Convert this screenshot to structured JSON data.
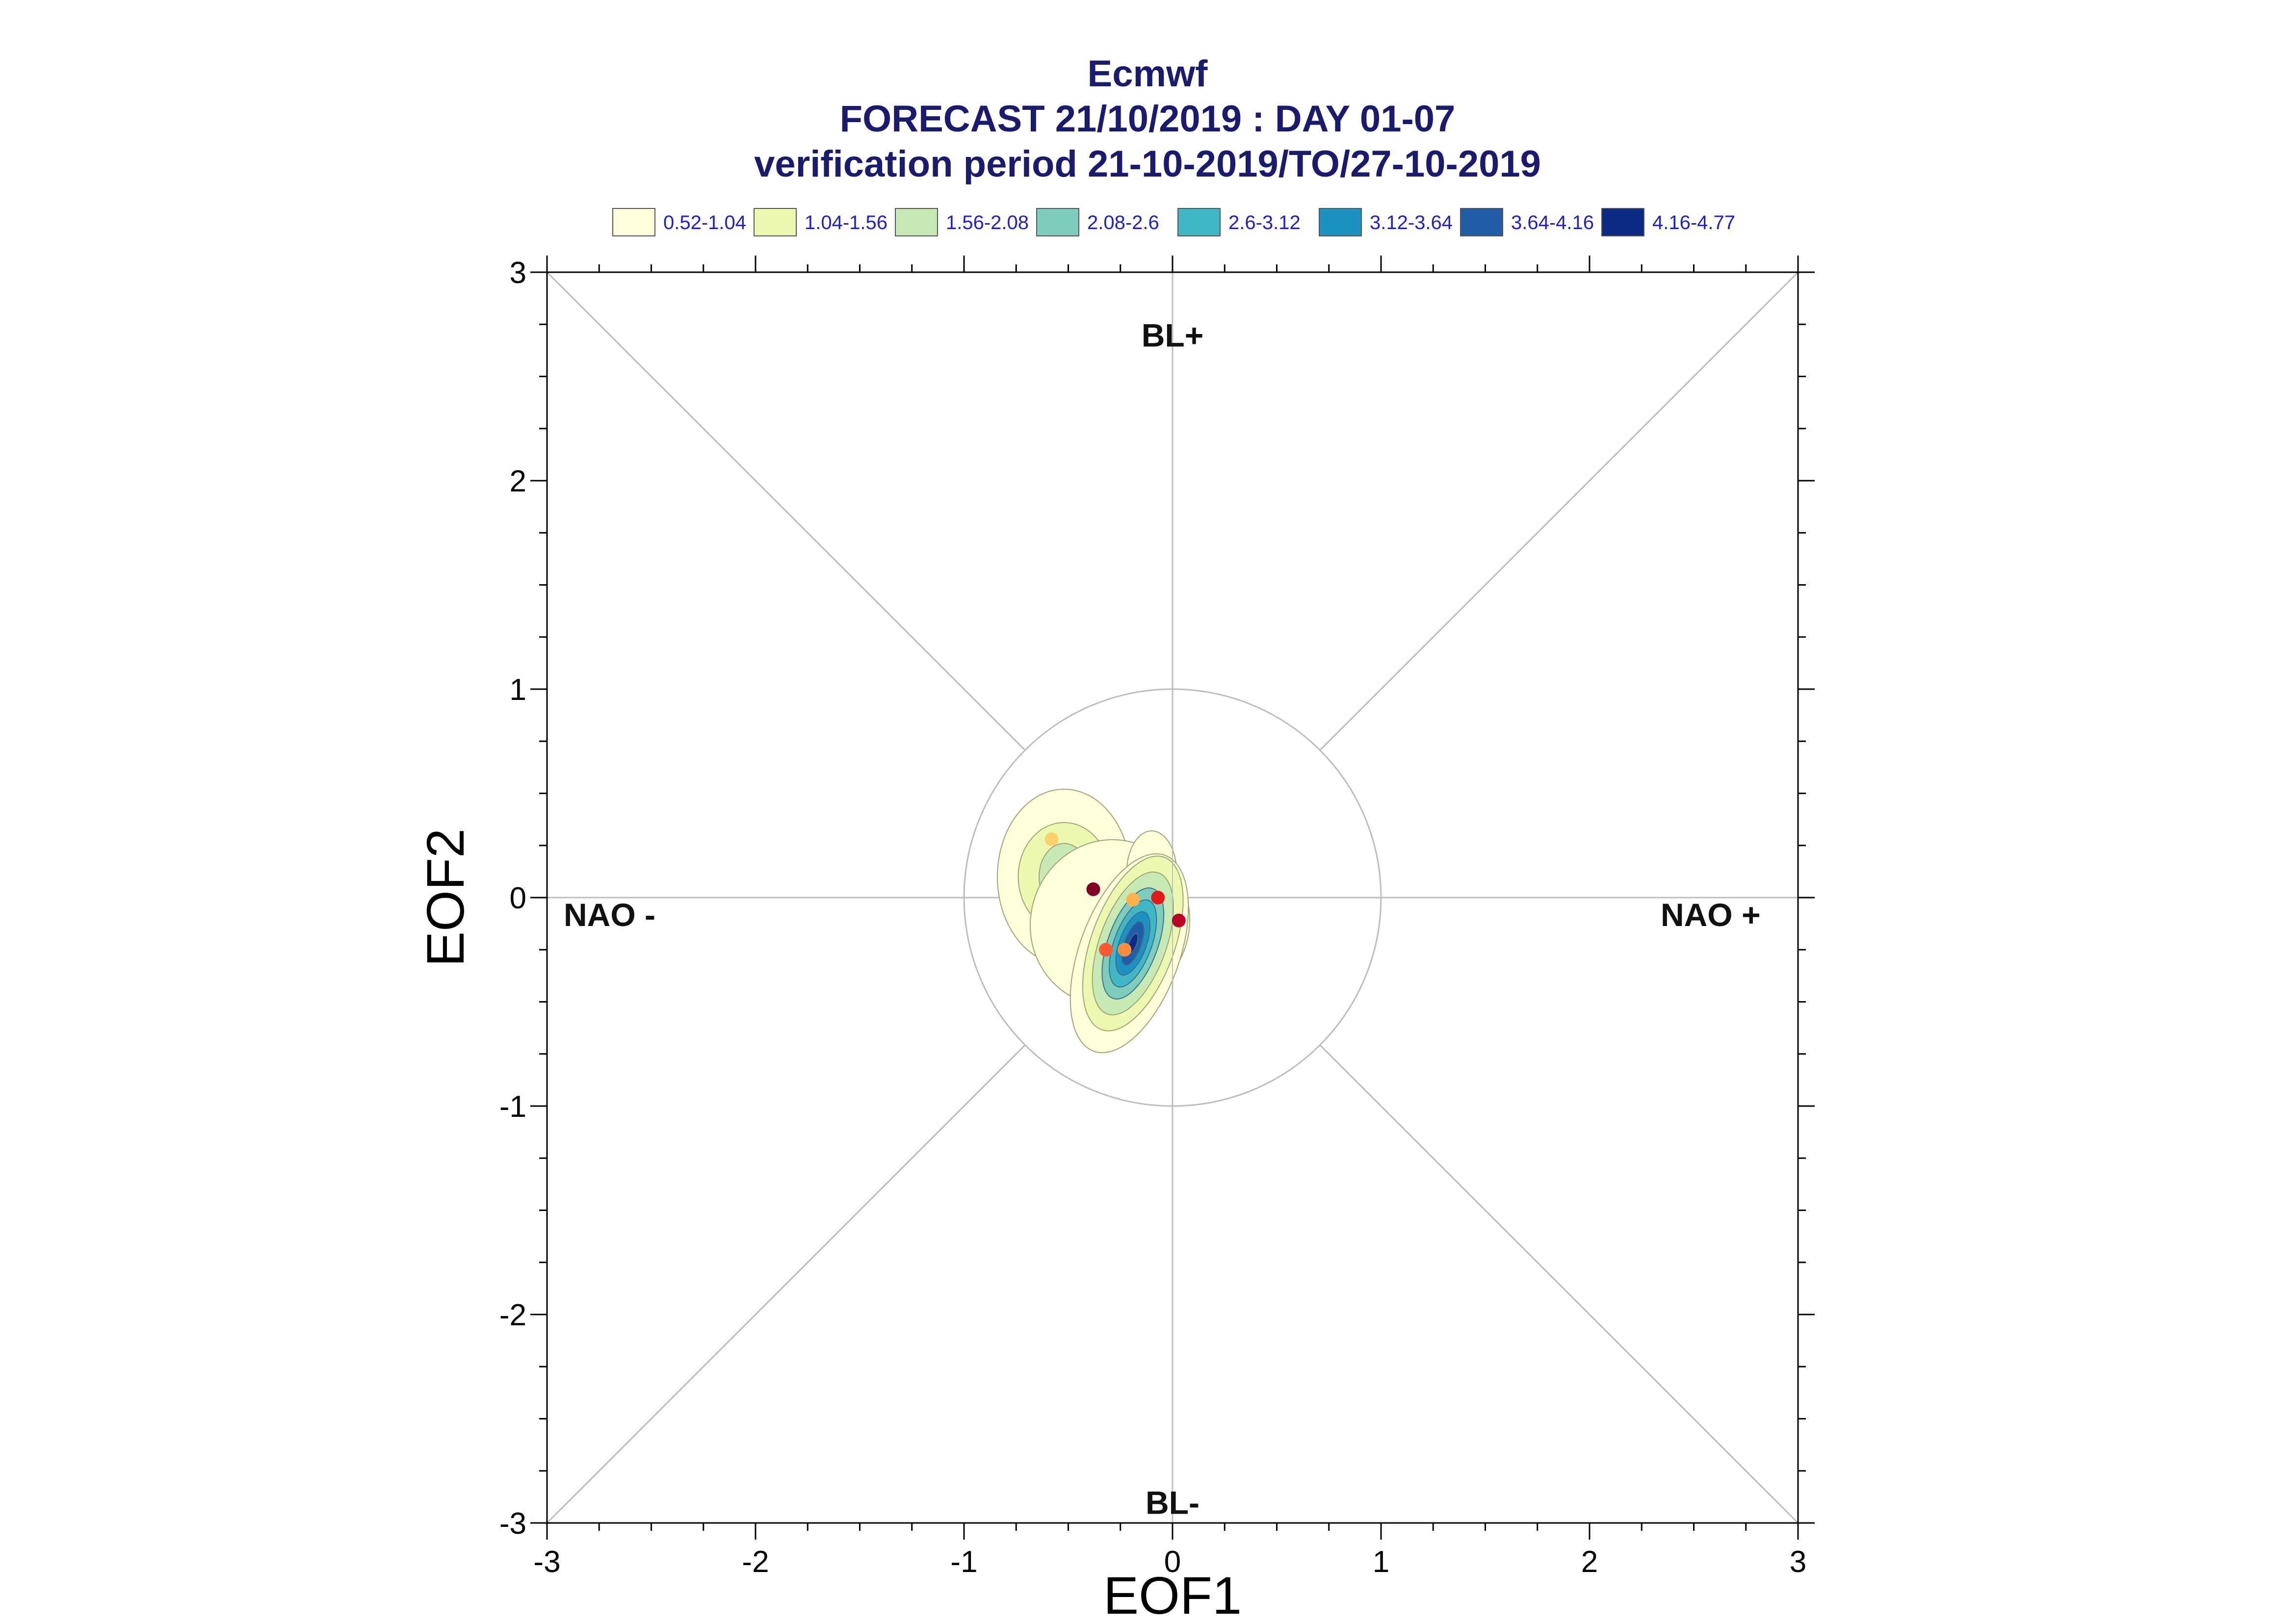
{
  "titles": {
    "line1": "Ecmwf",
    "line2": "FORECAST 21/10/2019 : DAY 01-07",
    "line3": "verification period 21-10-2019/TO/27-10-2019"
  },
  "legend": [
    {
      "label": "0.52-1.04",
      "color": "#ffffd9"
    },
    {
      "label": "1.04-1.56",
      "color": "#edf8b1"
    },
    {
      "label": "1.56-2.08",
      "color": "#c7e9b4"
    },
    {
      "label": "2.08-2.6",
      "color": "#7fcdbb"
    },
    {
      "label": "2.6-3.12",
      "color": "#41b6c4"
    },
    {
      "label": "3.12-3.64",
      "color": "#1d91c0"
    },
    {
      "label": "3.64-4.16",
      "color": "#225ea8"
    },
    {
      "label": "4.16-4.77",
      "color": "#0c2c84"
    }
  ],
  "chart_data": {
    "type": "scatter",
    "xlabel": "EOF1",
    "ylabel": "EOF2",
    "xlim": [
      -3,
      3
    ],
    "ylim": [
      -3,
      3
    ],
    "xticks": [
      "-3",
      "-2",
      "-1",
      "0",
      "1",
      "2",
      "3"
    ],
    "yticks": [
      "-3",
      "-2",
      "-1",
      "0",
      "1",
      "2",
      "3"
    ],
    "regime_labels": {
      "top": "BL+",
      "bottom": "BL-",
      "left": "NAO -",
      "right": "NAO +"
    },
    "reference_circle_radius": 1,
    "density_contours": {
      "levels": [
        0.52,
        1.04,
        1.56,
        2.08,
        2.6,
        3.12,
        3.64,
        4.16,
        4.77
      ],
      "peak_x": -0.19,
      "peak_y": -0.22,
      "secondary_peak_x": -0.52,
      "secondary_peak_y": 0.08
    },
    "points": [
      {
        "x": -0.58,
        "y": 0.28,
        "color": "#fdd26e"
      },
      {
        "x": -0.38,
        "y": 0.04,
        "color": "#800026"
      },
      {
        "x": -0.19,
        "y": -0.01,
        "color": "#feb24c"
      },
      {
        "x": -0.07,
        "y": 0.0,
        "color": "#e31a1c"
      },
      {
        "x": 0.03,
        "y": -0.11,
        "color": "#bd0026"
      },
      {
        "x": -0.32,
        "y": -0.25,
        "color": "#fd5a32"
      },
      {
        "x": -0.23,
        "y": -0.25,
        "color": "#fd8d3c"
      }
    ]
  }
}
